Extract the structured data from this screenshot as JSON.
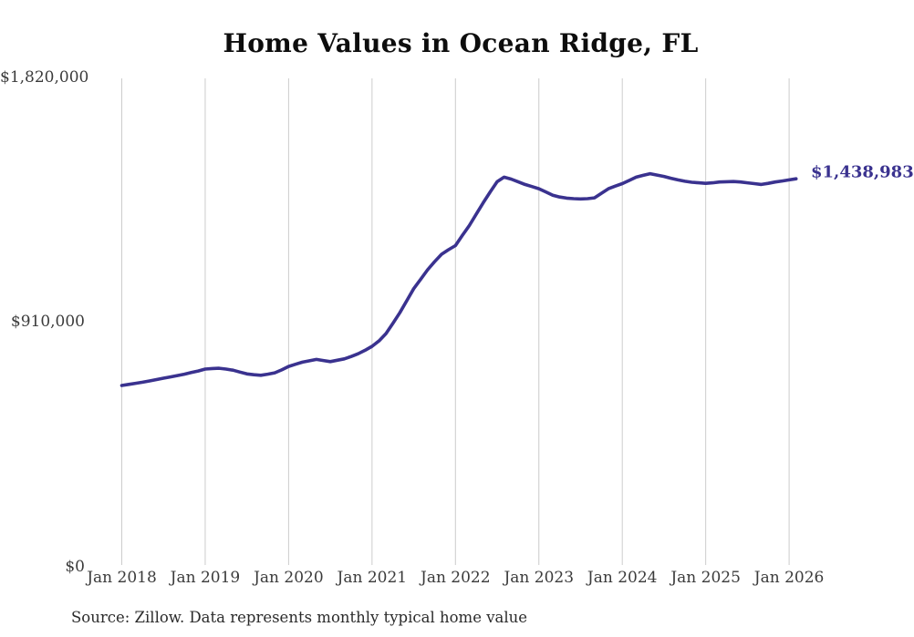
{
  "header": {
    "title": "Home Values in Ocean Ridge, FL"
  },
  "y_axis": {
    "tick_labels": [
      "$1,820,000",
      "$910,000",
      "$0"
    ],
    "tick_values": [
      1820000,
      910000,
      0
    ]
  },
  "x_axis": {
    "tick_labels": [
      "Jan 2018",
      "Jan 2019",
      "Jan 2020",
      "Jan 2021",
      "Jan 2022",
      "Jan 2023",
      "Jan 2024",
      "Jan 2025",
      "Jan 2026"
    ]
  },
  "annotations": {
    "latest_value_label": "$1,438,983"
  },
  "footer": {
    "source": "Source: Zillow. Data represents monthly typical home value"
  },
  "colors": {
    "line": "#3a328f",
    "gridline": "#cccccc",
    "axis_text": "#3b3b3b",
    "title_text": "#0d0d0d"
  },
  "chart_data": {
    "type": "line",
    "title": "Home Values in Ocean Ridge, FL",
    "xlabel": "",
    "ylabel": "",
    "x_start": "2018-01",
    "x_interval": "month",
    "x_tick_labels": [
      "Jan 2018",
      "Jan 2019",
      "Jan 2020",
      "Jan 2021",
      "Jan 2022",
      "Jan 2023",
      "Jan 2024",
      "Jan 2025",
      "Jan 2026"
    ],
    "ylim": [
      0,
      1820000
    ],
    "y_ticks": [
      0,
      910000,
      1820000
    ],
    "grid": "vertical-only",
    "legend": false,
    "end_value_label": "$1,438,983",
    "source_note": "Source: Zillow. Data represents monthly typical home value",
    "series": [
      {
        "name": "Monthly typical home value",
        "values": [
          669000,
          673000,
          677000,
          681000,
          686000,
          691000,
          696000,
          701000,
          706000,
          711000,
          717000,
          723000,
          730000,
          732000,
          733000,
          730000,
          726000,
          719000,
          712000,
          709000,
          707000,
          711000,
          716000,
          727000,
          740000,
          748000,
          756000,
          761000,
          766000,
          762000,
          758000,
          763000,
          768000,
          777000,
          787000,
          800000,
          815000,
          835000,
          862000,
          900000,
          940000,
          985000,
          1030000,
          1065000,
          1100000,
          1130000,
          1158000,
          1175000,
          1190000,
          1228000,
          1265000,
          1308000,
          1350000,
          1390000,
          1428000,
          1445000,
          1438000,
          1428000,
          1418000,
          1410000,
          1402000,
          1390000,
          1378000,
          1371000,
          1367000,
          1365000,
          1364000,
          1365000,
          1368000,
          1385000,
          1402000,
          1412000,
          1421000,
          1433000,
          1445000,
          1452000,
          1458000,
          1453000,
          1448000,
          1441000,
          1435000,
          1430000,
          1426000,
          1424000,
          1422000,
          1424000,
          1427000,
          1428000,
          1429000,
          1427000,
          1424000,
          1421000,
          1418000,
          1422000,
          1427000,
          1431000,
          1435000,
          1438983
        ]
      }
    ]
  }
}
